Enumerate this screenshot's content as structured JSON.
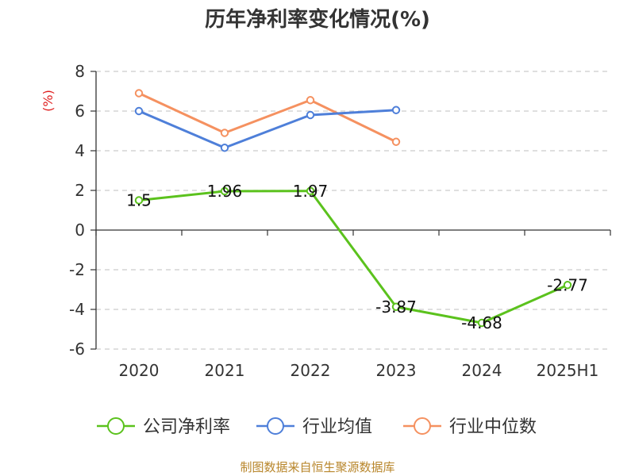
{
  "chart_data": {
    "type": "line",
    "title": "历年净利率变化情况(%)",
    "ylabel": "(%)",
    "xlabel": "",
    "categories": [
      "2020",
      "2021",
      "2022",
      "2023",
      "2024",
      "2025H1"
    ],
    "ylim": [
      -6,
      8
    ],
    "yticks": [
      "8",
      "6",
      "4",
      "2",
      "0",
      "-2",
      "-4",
      "-6"
    ],
    "grid": true,
    "legend_position": "bottom",
    "series": [
      {
        "name": "公司净利率",
        "color": "#5bc21d",
        "values": [
          1.5,
          1.96,
          1.97,
          -3.87,
          -4.68,
          -2.77
        ],
        "labels": [
          "1.5",
          "1.96",
          "1.97",
          "-3.87",
          "-4.68",
          "-2.77"
        ]
      },
      {
        "name": "行业均值",
        "color": "#4e7fd9",
        "values": [
          6.0,
          4.15,
          5.8,
          6.05,
          null,
          null
        ]
      },
      {
        "name": "行业中位数",
        "color": "#f59160",
        "values": [
          6.9,
          4.9,
          6.55,
          4.45,
          null,
          null
        ]
      }
    ]
  },
  "source": "制图数据来自恒生聚源数据库"
}
